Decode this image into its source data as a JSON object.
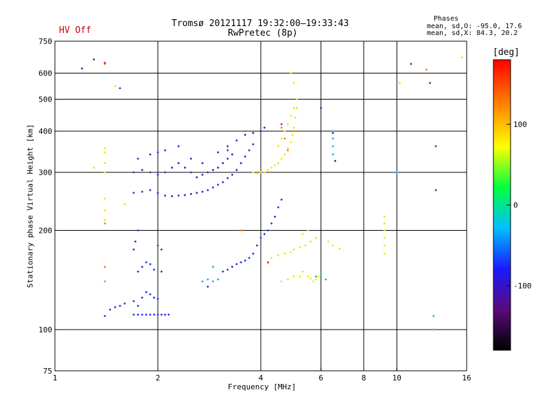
{
  "header": {
    "title_line1": "Tromsø 20121117 19:32:00–19:33:43",
    "title_line2": "RwPretec (8p)",
    "status": "HV Off",
    "status_color": "#cc0000",
    "phase_title": "Phases",
    "phase_line_o": "mean, sd,O: -95.0, 17.6",
    "phase_line_x": "mean, sd,X:  84.3, 20.2"
  },
  "chart_data": {
    "type": "scatter",
    "xlabel": "Frequency [MHz]",
    "ylabel": "Stationary phase Virtual Height [km]",
    "x_scale": "log",
    "y_scale": "log",
    "xlim": [
      1,
      16
    ],
    "ylim": [
      75,
      750
    ],
    "xticks": [
      "1",
      "2",
      "4",
      "6",
      "8",
      "10",
      "16"
    ],
    "x_gridlines": [
      2,
      4,
      6,
      8,
      10
    ],
    "yticks": [
      "75",
      "100",
      "200",
      "300",
      "400",
      "500",
      "600",
      "750"
    ],
    "y_gridlines": [
      100,
      200,
      300,
      400,
      500,
      600
    ],
    "grid": true,
    "colorbar": {
      "label": "[deg]",
      "ticks": [
        "100",
        "0",
        "-100"
      ],
      "tick_values": [
        100,
        0,
        -100
      ],
      "range": [
        -180,
        180
      ],
      "colors": [
        "#000000",
        "#5a0a7a",
        "#1a1aff",
        "#00bfff",
        "#00ff40",
        "#ffff00",
        "#ff8000",
        "#ff0000"
      ]
    },
    "series": [
      {
        "color": "#1428e6",
        "points": [
          [
            1.6,
            120
          ],
          [
            1.7,
            122
          ],
          [
            1.75,
            118
          ],
          [
            1.8,
            125
          ],
          [
            1.85,
            130
          ],
          [
            1.9,
            128
          ],
          [
            1.95,
            125
          ],
          [
            2.0,
            124
          ],
          [
            1.45,
            115
          ],
          [
            1.5,
            117
          ],
          [
            1.55,
            118
          ],
          [
            1.4,
            110
          ],
          [
            1.75,
            150
          ],
          [
            1.8,
            155
          ],
          [
            1.85,
            160
          ],
          [
            1.9,
            158
          ],
          [
            1.95,
            152
          ],
          [
            2.05,
            150
          ],
          [
            1.7,
            175
          ],
          [
            1.72,
            185
          ],
          [
            1.75,
            200
          ],
          [
            2.0,
            180
          ],
          [
            2.05,
            175
          ],
          [
            3.1,
            150
          ],
          [
            3.2,
            152
          ],
          [
            3.3,
            155
          ],
          [
            3.4,
            158
          ],
          [
            3.5,
            160
          ],
          [
            3.6,
            162
          ],
          [
            3.7,
            165
          ],
          [
            3.8,
            170
          ],
          [
            3.9,
            180
          ],
          [
            4.0,
            190
          ],
          [
            4.1,
            195
          ],
          [
            4.2,
            200
          ],
          [
            4.3,
            210
          ],
          [
            4.4,
            220
          ],
          [
            4.5,
            235
          ],
          [
            4.6,
            248
          ]
        ]
      },
      {
        "color": "#1020c0",
        "points": [
          [
            1.7,
            260
          ],
          [
            1.8,
            262
          ],
          [
            1.9,
            265
          ],
          [
            2.0,
            260
          ],
          [
            2.1,
            255
          ],
          [
            2.2,
            254
          ],
          [
            2.3,
            255
          ],
          [
            2.4,
            256
          ],
          [
            2.5,
            258
          ],
          [
            2.6,
            260
          ],
          [
            2.7,
            262
          ],
          [
            2.8,
            265
          ],
          [
            2.9,
            270
          ],
          [
            3.0,
            275
          ],
          [
            3.1,
            280
          ],
          [
            3.2,
            288
          ],
          [
            3.3,
            295
          ],
          [
            3.4,
            305
          ],
          [
            3.5,
            320
          ],
          [
            3.6,
            335
          ],
          [
            3.7,
            350
          ],
          [
            3.8,
            365
          ],
          [
            1.7,
            300
          ],
          [
            1.8,
            305
          ],
          [
            1.9,
            300
          ],
          [
            2.0,
            295
          ],
          [
            2.1,
            300
          ],
          [
            2.2,
            310
          ],
          [
            2.3,
            320
          ],
          [
            2.4,
            310
          ],
          [
            2.5,
            300
          ],
          [
            2.6,
            290
          ],
          [
            2.7,
            295
          ],
          [
            2.8,
            300
          ],
          [
            2.9,
            305
          ],
          [
            3.0,
            310
          ],
          [
            3.1,
            320
          ],
          [
            3.2,
            330
          ],
          [
            3.3,
            340
          ],
          [
            1.75,
            330
          ],
          [
            1.9,
            340
          ],
          [
            2.0,
            345
          ],
          [
            2.1,
            350
          ],
          [
            2.3,
            360
          ],
          [
            2.5,
            330
          ],
          [
            2.7,
            320
          ],
          [
            3.0,
            345
          ],
          [
            3.2,
            360
          ],
          [
            3.4,
            375
          ],
          [
            3.6,
            390
          ],
          [
            3.8,
            395
          ],
          [
            4.0,
            400
          ],
          [
            4.1,
            410
          ]
        ]
      },
      {
        "color": "#1a1aff",
        "points": [
          [
            1.7,
            111
          ],
          [
            1.75,
            111
          ],
          [
            1.8,
            111
          ],
          [
            1.85,
            111
          ],
          [
            1.9,
            111
          ],
          [
            1.95,
            111
          ],
          [
            2.0,
            111
          ],
          [
            2.05,
            111
          ],
          [
            2.1,
            111
          ],
          [
            2.15,
            111
          ]
        ]
      },
      {
        "color": "#e6e600",
        "points": [
          [
            4.1,
            300
          ],
          [
            4.2,
            305
          ],
          [
            4.3,
            310
          ],
          [
            4.4,
            315
          ],
          [
            4.5,
            320
          ],
          [
            4.6,
            330
          ],
          [
            4.7,
            340
          ],
          [
            4.8,
            355
          ],
          [
            4.9,
            370
          ],
          [
            4.95,
            390
          ],
          [
            5.0,
            410
          ],
          [
            5.05,
            440
          ],
          [
            5.1,
            470
          ],
          [
            5.1,
            500
          ],
          [
            5.0,
            560
          ],
          [
            4.9,
            600
          ],
          [
            3.8,
            300
          ],
          [
            3.9,
            298
          ],
          [
            4.0,
            300
          ],
          [
            4.5,
            360
          ],
          [
            4.6,
            380
          ],
          [
            4.7,
            400
          ],
          [
            4.8,
            420
          ],
          [
            4.9,
            445
          ],
          [
            5.0,
            470
          ],
          [
            4.3,
            165
          ],
          [
            4.5,
            168
          ],
          [
            4.7,
            170
          ],
          [
            4.9,
            172
          ],
          [
            5.0,
            175
          ],
          [
            5.2,
            178
          ],
          [
            5.4,
            180
          ],
          [
            5.6,
            185
          ],
          [
            5.8,
            190
          ],
          [
            4.6,
            140
          ],
          [
            4.8,
            142
          ],
          [
            5.0,
            145
          ],
          [
            5.2,
            145
          ],
          [
            5.3,
            150
          ],
          [
            5.5,
            145
          ],
          [
            5.6,
            143
          ],
          [
            5.7,
            140
          ],
          [
            5.8,
            142
          ],
          [
            5.9,
            145
          ],
          [
            5.5,
            200
          ],
          [
            5.3,
            195
          ],
          [
            6.3,
            185
          ],
          [
            6.5,
            180
          ],
          [
            6.8,
            176
          ],
          [
            9.2,
            180
          ],
          [
            9.2,
            190
          ],
          [
            9.2,
            200
          ],
          [
            9.2,
            210
          ],
          [
            9.2,
            220
          ],
          [
            9.2,
            170
          ],
          [
            1.4,
            300
          ],
          [
            1.4,
            320
          ],
          [
            1.4,
            345
          ],
          [
            1.4,
            355
          ],
          [
            1.4,
            250
          ],
          [
            1.4,
            230
          ],
          [
            1.4,
            215
          ],
          [
            1.3,
            310
          ],
          [
            1.6,
            240
          ],
          [
            1.5,
            548
          ],
          [
            10.2,
            560
          ],
          [
            15.5,
            670
          ]
        ]
      },
      {
        "color": "#00aaff",
        "points": [
          [
            2.7,
            140
          ],
          [
            2.8,
            142
          ],
          [
            2.9,
            140
          ],
          [
            3.0,
            142
          ],
          [
            6.5,
            400
          ],
          [
            6.5,
            380
          ],
          [
            6.5,
            360
          ],
          [
            6.5,
            340
          ],
          [
            10.0,
            300
          ],
          [
            12.8,
            110
          ],
          [
            12.8,
            100
          ]
        ]
      },
      {
        "color": "#00cc44",
        "points": [
          [
            5.8,
            145
          ],
          [
            6.0,
            148
          ],
          [
            6.2,
            142
          ],
          [
            2.9,
            155
          ]
        ]
      },
      {
        "color": "#ff6a00",
        "points": [
          [
            1.4,
            640
          ],
          [
            1.4,
            210
          ],
          [
            1.4,
            140
          ],
          [
            1.4,
            155
          ],
          [
            4.6,
            410
          ],
          [
            4.7,
            380
          ],
          [
            4.8,
            350
          ],
          [
            5.0,
            400
          ],
          [
            3.5,
            200
          ],
          [
            12.2,
            615
          ]
        ]
      },
      {
        "color": "#ff0000",
        "points": [
          [
            1.4,
            645
          ],
          [
            4.2,
            160
          ],
          [
            4.6,
            420
          ]
        ]
      },
      {
        "color": "#3a1aa0",
        "points": [
          [
            1.55,
            540
          ],
          [
            1.3,
            660
          ],
          [
            1.2,
            620
          ],
          [
            11.0,
            640
          ],
          [
            12.5,
            560
          ],
          [
            13.0,
            360
          ],
          [
            13.0,
            265
          ],
          [
            6.5,
            395
          ],
          [
            6.6,
            325
          ],
          [
            6.0,
            470
          ],
          [
            3.2,
            350
          ],
          [
            2.8,
            135
          ]
        ]
      }
    ]
  }
}
